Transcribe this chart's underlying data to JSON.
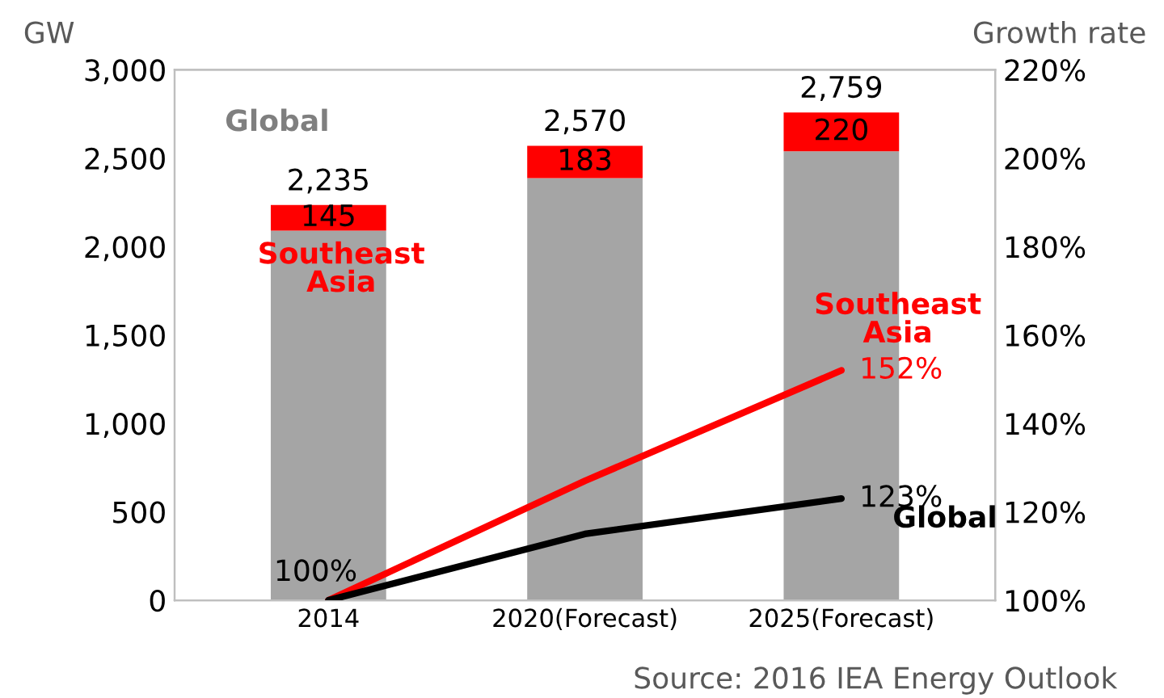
{
  "chart_data": {
    "type": "bar",
    "stacked": true,
    "categories": [
      "2014",
      "2020(Forecast)",
      "2025(Forecast)"
    ],
    "ylabel": "GW",
    "y2label": "Growth rate",
    "series": [
      {
        "name": "Global",
        "color": "#a5a5a5",
        "values": [
          2090,
          2387,
          2539
        ]
      },
      {
        "name": "Southeast Asia",
        "color": "#ff0000",
        "values": [
          145,
          183,
          220
        ],
        "value_labels": [
          "145",
          "183",
          "220"
        ]
      },
      {
        "name": "Southeast Asia",
        "type": "line",
        "axis": "y2",
        "color": "#ff0000",
        "values": [
          100,
          127,
          152
        ],
        "value_labels": [
          null,
          null,
          "152%"
        ]
      },
      {
        "name": "Global",
        "type": "line",
        "axis": "y2",
        "color": "#000000",
        "values": [
          100,
          115,
          123
        ],
        "value_labels": [
          "100%",
          null,
          "123%"
        ]
      }
    ],
    "totals": [
      "2,235",
      "2,570",
      "2,759"
    ],
    "ylim": [
      0,
      3000
    ],
    "yticks": [
      0,
      {
        "value": 500,
        "label": "500"
      },
      {
        "value": 1000,
        "label": "1,000"
      },
      {
        "value": 1500,
        "label": "1,500"
      },
      {
        "value": 2000,
        "label": "2,000"
      },
      {
        "value": 2500,
        "label": "2,500"
      },
      {
        "value": 3000,
        "label": "3,000"
      }
    ],
    "y2lim": [
      100,
      220
    ],
    "y2ticks": [
      {
        "value": 100,
        "label": "100%"
      },
      {
        "value": 120,
        "label": "120%"
      },
      {
        "value": 140,
        "label": "140%"
      },
      {
        "value": 160,
        "label": "160%"
      },
      {
        "value": 180,
        "label": "180%"
      },
      {
        "value": 200,
        "label": "200%"
      },
      {
        "value": 220,
        "label": "220%"
      }
    ],
    "annotations": [
      "Source: 2016 IEA Energy Outlook"
    ],
    "grid": false,
    "legend": false,
    "marker": "none",
    "line_style": "solid"
  }
}
